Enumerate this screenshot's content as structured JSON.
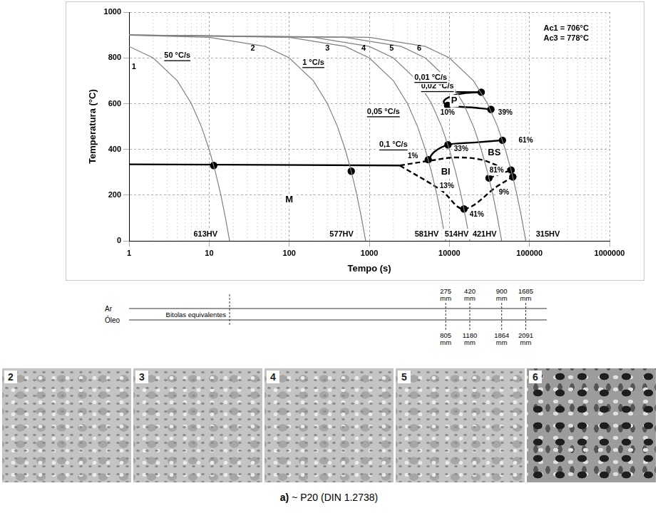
{
  "chart_data": {
    "type": "line",
    "x_label": "Tempo (s)",
    "y_label": "Temperatura (°C)",
    "log": "x",
    "xlim": [
      1,
      1000000
    ],
    "xticks": [
      1,
      10,
      100,
      1000,
      10000,
      100000,
      1000000
    ],
    "ylim": [
      0,
      1000
    ],
    "yticks": [
      0,
      200,
      400,
      600,
      800,
      1000
    ],
    "grid": true,
    "series": [
      {
        "name": "1",
        "color": "#808080",
        "line_style": "solid",
        "marker": "none",
        "label_xy": [
          1.15,
          760
        ],
        "x": [
          1,
          2,
          4,
          6,
          8,
          10,
          12,
          14,
          16,
          18
        ],
        "values": [
          850,
          800,
          700,
          600,
          500,
          400,
          300,
          200,
          100,
          0
        ]
      },
      {
        "name": "2",
        "color": "#808080",
        "line_style": "solid",
        "marker": "none",
        "label_xy": [
          35,
          840
        ],
        "x": [
          1,
          10,
          50,
          100,
          200,
          300,
          400,
          500,
          600,
          700,
          800,
          900
        ],
        "values": [
          899,
          890,
          850,
          800,
          700,
          600,
          500,
          400,
          300,
          200,
          100,
          0
        ]
      },
      {
        "name": "3",
        "color": "#808080",
        "line_style": "solid",
        "marker": "none",
        "label_xy": [
          300,
          840
        ],
        "x": [
          1,
          100,
          500,
          1000,
          2000,
          3000,
          4000,
          5000,
          6000,
          7000,
          8000,
          9000
        ],
        "values": [
          900,
          890,
          850,
          800,
          700,
          600,
          500,
          400,
          300,
          200,
          100,
          0
        ]
      },
      {
        "name": "4",
        "color": "#808080",
        "line_style": "solid",
        "marker": "none",
        "label_xy": [
          850,
          840
        ],
        "x": [
          1,
          200,
          1000,
          2000,
          4000,
          6000,
          8000,
          10000,
          12000,
          14000,
          16000,
          18000
        ],
        "values": [
          900,
          890,
          850,
          800,
          700,
          600,
          500,
          400,
          300,
          200,
          100,
          0
        ]
      },
      {
        "name": "5",
        "color": "#808080",
        "line_style": "solid",
        "marker": "none",
        "label_xy": [
          1900,
          840
        ],
        "x": [
          1,
          500,
          2500,
          5000,
          10000,
          15000,
          20000,
          25000,
          30000,
          35000,
          40000,
          45000
        ],
        "values": [
          900,
          890,
          850,
          800,
          700,
          600,
          500,
          400,
          300,
          200,
          100,
          0
        ]
      },
      {
        "name": "6",
        "color": "#808080",
        "line_style": "solid",
        "marker": "none",
        "label_xy": [
          4200,
          840
        ],
        "x": [
          1,
          1000,
          5000,
          10000,
          20000,
          30000,
          40000,
          50000,
          60000,
          70000,
          80000,
          90000
        ],
        "values": [
          900,
          890,
          850,
          800,
          700,
          600,
          500,
          400,
          300,
          200,
          100,
          0
        ]
      },
      {
        "color": "#000000",
        "line_style": "solid",
        "marker": "none",
        "x": [
          1,
          2400
        ],
        "values": [
          335,
          330
        ]
      },
      {
        "color": "#000000",
        "line_style": "solid",
        "marker": "none",
        "x": [
          5450,
          6500,
          9600,
          20000,
          46000
        ],
        "values": [
          355,
          390,
          420,
          430,
          440
        ]
      },
      {
        "color": "#000000",
        "line_style": "solid",
        "marker": "none",
        "x": [
          5800,
          25000
        ],
        "values": [
          652,
          650
        ]
      },
      {
        "color": "#000000",
        "line_style": "solid",
        "marker": "none",
        "x": [
          25000,
          15000,
          10500,
          8500,
          9500,
          20000,
          33000
        ],
        "values": [
          650,
          645,
          632,
          610,
          592,
          583,
          575
        ]
      },
      {
        "color": "#000000",
        "line_style": "dashed",
        "marker": "none",
        "x": [
          2400,
          6000,
          12000,
          25000,
          45000,
          59000
        ],
        "values": [
          330,
          352,
          365,
          355,
          322,
          310
        ]
      },
      {
        "color": "#000000",
        "line_style": "dashed",
        "marker": "none",
        "x": [
          2400,
          8000,
          15200,
          40000,
          62000
        ],
        "values": [
          330,
          220,
          140,
          240,
          280
        ]
      },
      {
        "color": "#000000",
        "line_style": "dashed",
        "marker": "none",
        "x": [
          31250,
          59000
        ],
        "values": [
          275,
          310
        ]
      },
      {
        "color": "#000000",
        "line_style": "none",
        "marker": "circle",
        "x": [
          11.4,
          595,
          5450,
          9600,
          25000,
          9500,
          33000,
          46000,
          15200,
          31250,
          59000,
          62000
        ],
        "values": [
          330,
          305,
          355,
          420,
          650,
          592,
          575,
          440,
          140,
          275,
          310,
          280
        ]
      }
    ],
    "rate_labels": [
      {
        "text": "50 °C/s",
        "x": 4,
        "y": 810
      },
      {
        "text": "1 °C/s",
        "x": 200,
        "y": 780
      },
      {
        "text": "0,1 °C/s",
        "x": 2000,
        "y": 420
      },
      {
        "text": "0,05 °C/s",
        "x": 1500,
        "y": 565
      },
      {
        "text": "0,02 °C/s",
        "x": 7100,
        "y": 675
      },
      {
        "text": "0,01 °C/s",
        "x": 5850,
        "y": 715
      }
    ],
    "region_labels": [
      {
        "text": "P",
        "x": 11500,
        "y": 612
      },
      {
        "text": "BS",
        "x": 36400,
        "y": 385
      },
      {
        "text": "BI",
        "x": 9000,
        "y": 300
      },
      {
        "text": "M",
        "x": 100,
        "y": 180
      }
    ],
    "percent_labels": [
      {
        "text": "1%",
        "x": 3500,
        "y": 370
      },
      {
        "text": "33%",
        "x": 14000,
        "y": 400
      },
      {
        "text": "61%",
        "x": 90000,
        "y": 440
      },
      {
        "text": "10%",
        "x": 9500,
        "y": 560
      },
      {
        "text": "39%",
        "x": 50000,
        "y": 560
      },
      {
        "text": "13%",
        "x": 9300,
        "y": 240
      },
      {
        "text": "81%",
        "x": 39000,
        "y": 308
      },
      {
        "text": "9%",
        "x": 48000,
        "y": 212
      },
      {
        "text": "41%",
        "x": 22000,
        "y": 115
      }
    ],
    "hardness_labels": [
      {
        "text": "613HV",
        "x": 9,
        "y": 30
      },
      {
        "text": "577HV",
        "x": 450,
        "y": 30
      },
      {
        "text": "581HV",
        "x": 5200,
        "y": 30
      },
      {
        "text": "514HV",
        "x": 12300,
        "y": 30
      },
      {
        "text": "421HV",
        "x": 27500,
        "y": 30
      },
      {
        "text": "315HV",
        "x": 170000,
        "y": 30
      }
    ],
    "notes": [
      {
        "text": "Ac1 = 706°C",
        "x": 150000,
        "y": 930
      },
      {
        "text": "Ac3 = 778°C",
        "x": 150000,
        "y": 885
      }
    ]
  },
  "equivalent_sizes": {
    "title": "Bitolas equivalentes",
    "rows": [
      "Ar",
      "Óleo"
    ],
    "columns": [
      {
        "curve": "1"
      },
      {
        "curve": "3",
        "values": [
          "275 mm",
          "805 mm"
        ]
      },
      {
        "curve": "4",
        "values": [
          "420 mm",
          "1180 mm"
        ]
      },
      {
        "curve": "5",
        "values": [
          "900 mm",
          "1864 mm"
        ]
      },
      {
        "curve": "6",
        "values": [
          "1685 mm",
          "2091 mm"
        ]
      }
    ]
  },
  "micrographs": [
    "2",
    "3",
    "4",
    "5",
    "6"
  ],
  "caption": {
    "label": "a)",
    "text": "~ P20 (DIN 1.2738)"
  }
}
